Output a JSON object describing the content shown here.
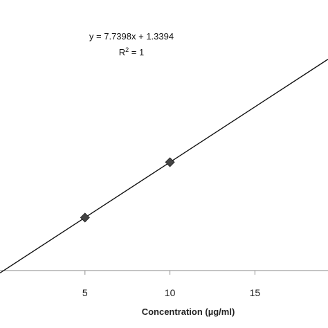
{
  "chart_data": {
    "type": "scatter",
    "title": "",
    "xlabel": "Concentration (µg/ml)",
    "ylabel": "",
    "xlim": [
      0,
      19.3
    ],
    "x_ticks": [
      5,
      10,
      15
    ],
    "x_tick_labels": [
      "5",
      "10",
      "15"
    ],
    "series": [
      {
        "x": [
          5,
          10
        ],
        "y": [
          40.04,
          78.74
        ],
        "marker": "diamond",
        "color": "#444444"
      }
    ],
    "trendline": {
      "slope": 7.7398,
      "intercept": 1.3394,
      "equation_label": "y = 7.7398x + 1.3394",
      "r2_prefix": "R",
      "r2_exponent": "2",
      "r2_suffix": " = 1",
      "color": "#111111"
    },
    "grid": false,
    "legend": "none"
  }
}
